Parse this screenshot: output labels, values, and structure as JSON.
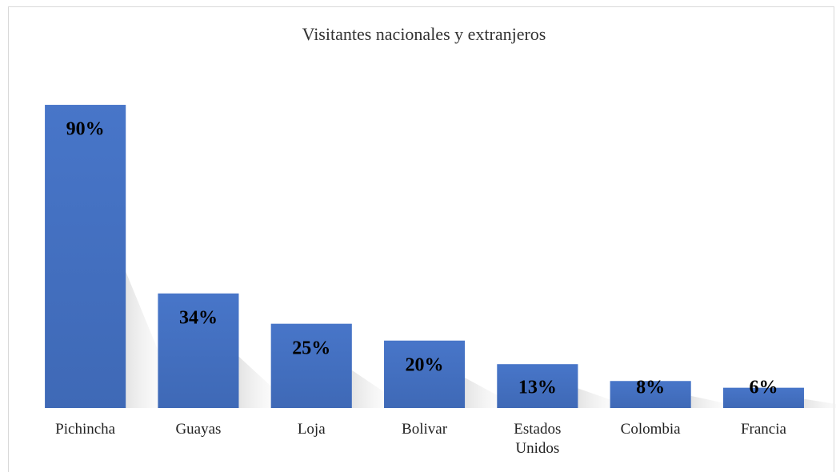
{
  "chart_data": {
    "type": "bar",
    "title": "Visitantes nacionales y extranjeros",
    "categories": [
      "Pichincha",
      "Guayas",
      "Loja",
      "Bolivar",
      "Estados Unidos",
      "Colombia",
      "Francia"
    ],
    "values": [
      90,
      34,
      25,
      20,
      13,
      8,
      6
    ],
    "value_labels": [
      "90%",
      "34%",
      "25%",
      "20%",
      "13%",
      "8%",
      "6%"
    ],
    "color": "#4472c4"
  }
}
